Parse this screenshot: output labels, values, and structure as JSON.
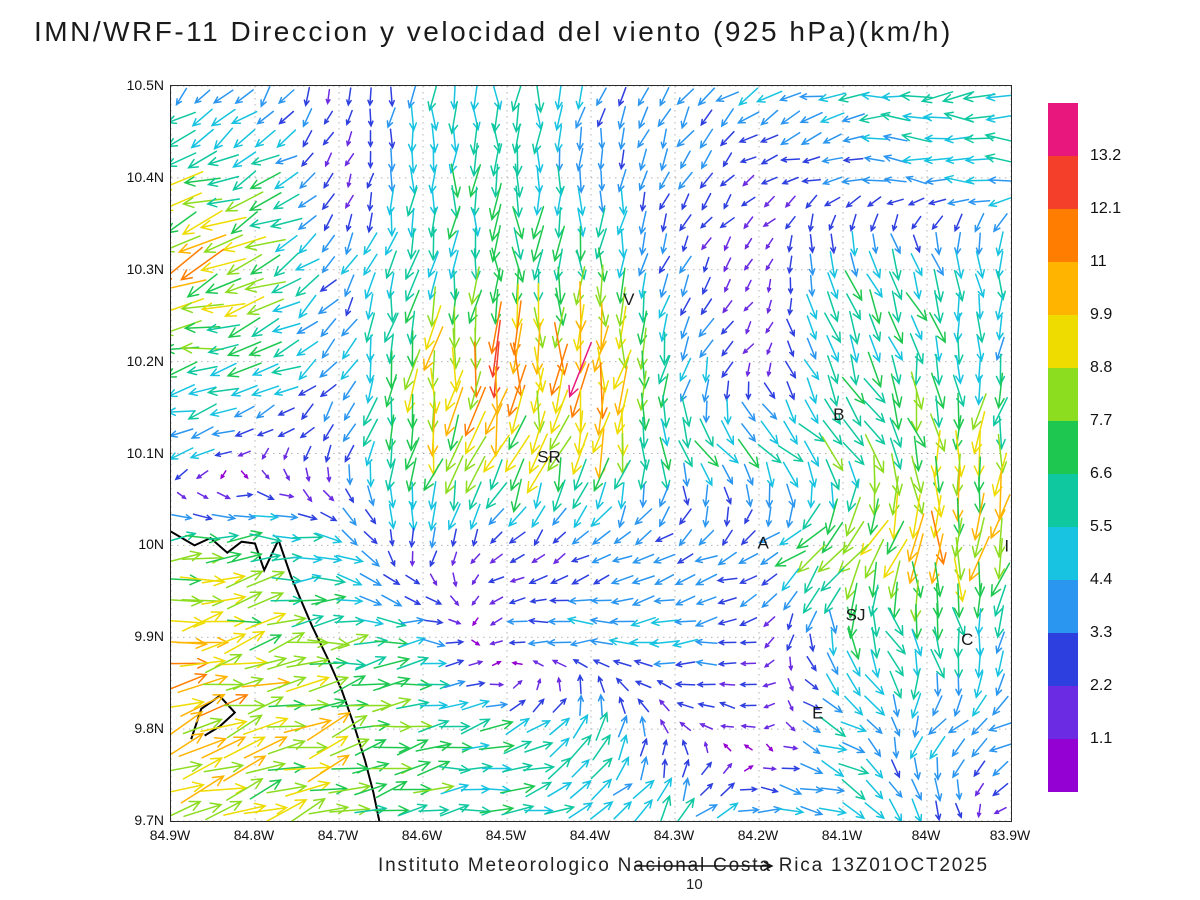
{
  "title": "IMN/WRF-11 Direccion y velocidad del viento (925 hPa)(km/h)",
  "caption": "Instituto Meteorologico Nacional Costa Rica 13Z01OCT2025",
  "ref_vector": {
    "label": "10"
  },
  "axes": {
    "lat_tick_labels": [
      "10.5N",
      "10.4N",
      "10.3N",
      "10.2N",
      "10.1N",
      "10N",
      "9.9N",
      "9.8N",
      "9.7N"
    ],
    "lat_values": [
      10.5,
      10.4,
      10.3,
      10.2,
      10.1,
      10.0,
      9.9,
      9.8,
      9.7
    ],
    "lon_tick_labels": [
      "84.9W",
      "84.8W",
      "84.7W",
      "84.6W",
      "84.5W",
      "84.4W",
      "84.3W",
      "84.2W",
      "84.1W",
      "84W",
      "83.9W"
    ],
    "lon_values": [
      84.9,
      84.8,
      84.7,
      84.6,
      84.5,
      84.4,
      84.3,
      84.2,
      84.1,
      84.0,
      83.9
    ]
  },
  "colorbar": {
    "tick_labels_top_to_bottom": [
      "13.2",
      "12.1",
      "11",
      "9.9",
      "8.8",
      "7.7",
      "6.6",
      "5.5",
      "4.4",
      "3.3",
      "2.2",
      "1.1"
    ],
    "levels_ascending": [
      1.1,
      2.2,
      3.3,
      4.4,
      5.5,
      6.6,
      7.7,
      8.8,
      9.9,
      11,
      12.1,
      13.2
    ],
    "colors_bottom_to_top": [
      "#9401D3",
      "#6A2BE2",
      "#2E3FE0",
      "#2B96F0",
      "#17C3E0",
      "#10C8A0",
      "#1EC850",
      "#8CDC20",
      "#EEDC00",
      "#FFB400",
      "#FF7D00",
      "#F4402A",
      "#E8177E"
    ]
  },
  "stations": [
    {
      "label": "V",
      "lon": 84.355,
      "lat": 10.268
    },
    {
      "label": "B",
      "lon": 84.105,
      "lat": 10.143
    },
    {
      "label": "SR",
      "lon": 84.45,
      "lat": 10.097
    },
    {
      "label": "A",
      "lon": 84.195,
      "lat": 10.003
    },
    {
      "label": "SJ",
      "lon": 84.085,
      "lat": 9.925
    },
    {
      "label": "C",
      "lon": 83.952,
      "lat": 9.898
    },
    {
      "label": "E",
      "lon": 84.13,
      "lat": 9.818
    },
    {
      "label": "I",
      "lon": 83.905,
      "lat": 10.0
    }
  ],
  "coastline": [
    [
      [
        84.9,
        10.015
      ],
      [
        84.872,
        10.0
      ],
      [
        84.853,
        10.008
      ],
      [
        84.833,
        9.992
      ],
      [
        84.816,
        10.004
      ],
      [
        84.8,
        10.002
      ],
      [
        84.789,
        9.973
      ],
      [
        84.772,
        10.006
      ],
      [
        84.757,
        9.966
      ],
      [
        84.747,
        9.944
      ],
      [
        84.732,
        9.912
      ],
      [
        84.714,
        9.878
      ],
      [
        84.697,
        9.843
      ],
      [
        84.682,
        9.804
      ],
      [
        84.669,
        9.766
      ],
      [
        84.659,
        9.731
      ],
      [
        84.652,
        9.7
      ]
    ],
    [
      [
        84.876,
        9.789
      ],
      [
        84.864,
        9.822
      ],
      [
        84.842,
        9.836
      ],
      [
        84.824,
        9.818
      ],
      [
        84.842,
        9.803
      ],
      [
        84.86,
        9.793
      ]
    ]
  ],
  "chart_data": {
    "type": "quiver",
    "title": "IMN/WRF-11 Direccion y velocidad del viento (925 hPa)(km/h)",
    "units": "km/h",
    "level": "925 hPa",
    "valid_time": "13Z01OCT2025",
    "lon_range_w": [
      84.9,
      83.9
    ],
    "lat_range_n": [
      9.7,
      10.5
    ],
    "speed_bins_kmh": [
      1.1,
      2.2,
      3.3,
      4.4,
      5.5,
      6.6,
      7.7,
      8.8,
      9.9,
      11,
      12.1,
      13.2
    ],
    "reference_vector_kmh": 10,
    "grid": {
      "lon_w": [
        84.9,
        84.8,
        84.7,
        84.6,
        84.5,
        84.4,
        84.3,
        84.2,
        84.1,
        84.0,
        83.9
      ],
      "lat_n": [
        10.5,
        10.4,
        10.3,
        10.2,
        10.1,
        10.0,
        9.9,
        9.8,
        9.7
      ],
      "u_east_kmh": [
        [
          -2.0,
          -2.0,
          -0.5,
          0.0,
          0.0,
          -1.0,
          -2.0,
          -4.0,
          -5.0,
          -6.0,
          -5.0
        ],
        [
          -8.0,
          -6.0,
          -1.0,
          -0.5,
          0.0,
          -0.5,
          -1.5,
          -2.0,
          -3.5,
          -4.5,
          -5.0
        ],
        [
          -9.0,
          -8.0,
          -2.0,
          -1.0,
          0.0,
          0.0,
          -1.0,
          -1.0,
          2.0,
          3.0,
          0.0
        ],
        [
          -7.0,
          -6.5,
          -2.0,
          -1.0,
          -1.0,
          -1.0,
          -2.0,
          -1.0,
          3.0,
          1.0,
          -1.5
        ],
        [
          -5.0,
          -1.0,
          -1.5,
          -2.0,
          -3.0,
          -3.0,
          2.0,
          4.0,
          5.0,
          2.0,
          -2.0
        ],
        [
          7.0,
          7.0,
          4.5,
          -1.0,
          -1.5,
          -2.5,
          -3.0,
          -3.0,
          -8.0,
          0.0,
          -3.0
        ],
        [
          9.5,
          8.5,
          7.0,
          5.0,
          -3.0,
          -4.5,
          -5.0,
          -2.0,
          2.0,
          3.0,
          -1.0
        ],
        [
          9.0,
          9.0,
          8.5,
          7.0,
          5.5,
          2.0,
          -1.0,
          -2.0,
          6.0,
          -3.0,
          -4.0
        ],
        [
          8.5,
          8.5,
          7.5,
          7.0,
          6.5,
          5.5,
          3.0,
          5.0,
          4.5,
          3.0,
          -2.0
        ]
      ],
      "v_north_kmh": [
        [
          -3.0,
          -3.0,
          -2.0,
          -5.0,
          -6.0,
          -4.0,
          -3.5,
          -2.0,
          -1.0,
          -0.5,
          0.0
        ],
        [
          -3.0,
          -3.0,
          -1.5,
          -5.0,
          -6.5,
          -4.0,
          -3.0,
          -1.0,
          -0.5,
          0.5,
          0.0
        ],
        [
          -4.0,
          -3.5,
          -3.0,
          -6.0,
          -7.0,
          -7.0,
          -3.0,
          -1.0,
          -5.5,
          -5.0,
          -5.0
        ],
        [
          -1.0,
          -2.0,
          -3.0,
          -9.0,
          -11.0,
          -12.0,
          -5.5,
          -1.0,
          -6.0,
          -6.0,
          -4.5
        ],
        [
          -2.0,
          -1.0,
          -2.5,
          -8.5,
          -8.0,
          -9.5,
          -5.5,
          -4.5,
          -5.0,
          -8.5,
          -8.5
        ],
        [
          1.0,
          0.5,
          -2.0,
          -3.0,
          -1.5,
          -1.5,
          -1.5,
          -2.0,
          -7.0,
          -10.0,
          -8.5
        ],
        [
          2.0,
          2.0,
          1.0,
          0.0,
          -0.5,
          0.0,
          -0.5,
          -0.5,
          -5.5,
          -6.0,
          -5.0
        ],
        [
          3.0,
          3.0,
          2.5,
          1.0,
          1.5,
          5.5,
          1.5,
          0.0,
          -2.0,
          -4.0,
          -2.0
        ],
        [
          2.5,
          2.5,
          2.5,
          1.0,
          0.5,
          1.5,
          5.0,
          0.0,
          -2.0,
          -4.0,
          -0.5
        ]
      ]
    }
  }
}
